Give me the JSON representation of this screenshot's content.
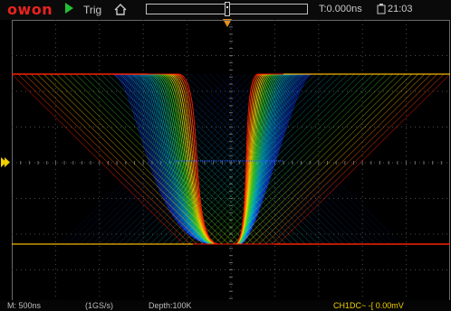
{
  "topbar": {
    "brand": "owon",
    "trig_label": "Trig",
    "time_readout": "T:0.000ns",
    "clock": "21:03"
  },
  "bottombar": {
    "timebase": "M: 500ns",
    "sample_rate": "(1GS/s)",
    "depth": "Depth:100K",
    "channel_info": "CH1DC~ -[ 0.00mV"
  },
  "icons": {
    "run": "play-icon",
    "home": "home-icon",
    "battery": "battery-icon",
    "trigger_position": "trigger-position-marker",
    "channel": "channel-1-marker"
  },
  "colors": {
    "brand": "#e8231f",
    "trigger": "#e8901f",
    "channel": "#f0d000",
    "run": "#22c030",
    "waveform_hot": "#ff1a00",
    "waveform_cold": "#1030ff"
  }
}
